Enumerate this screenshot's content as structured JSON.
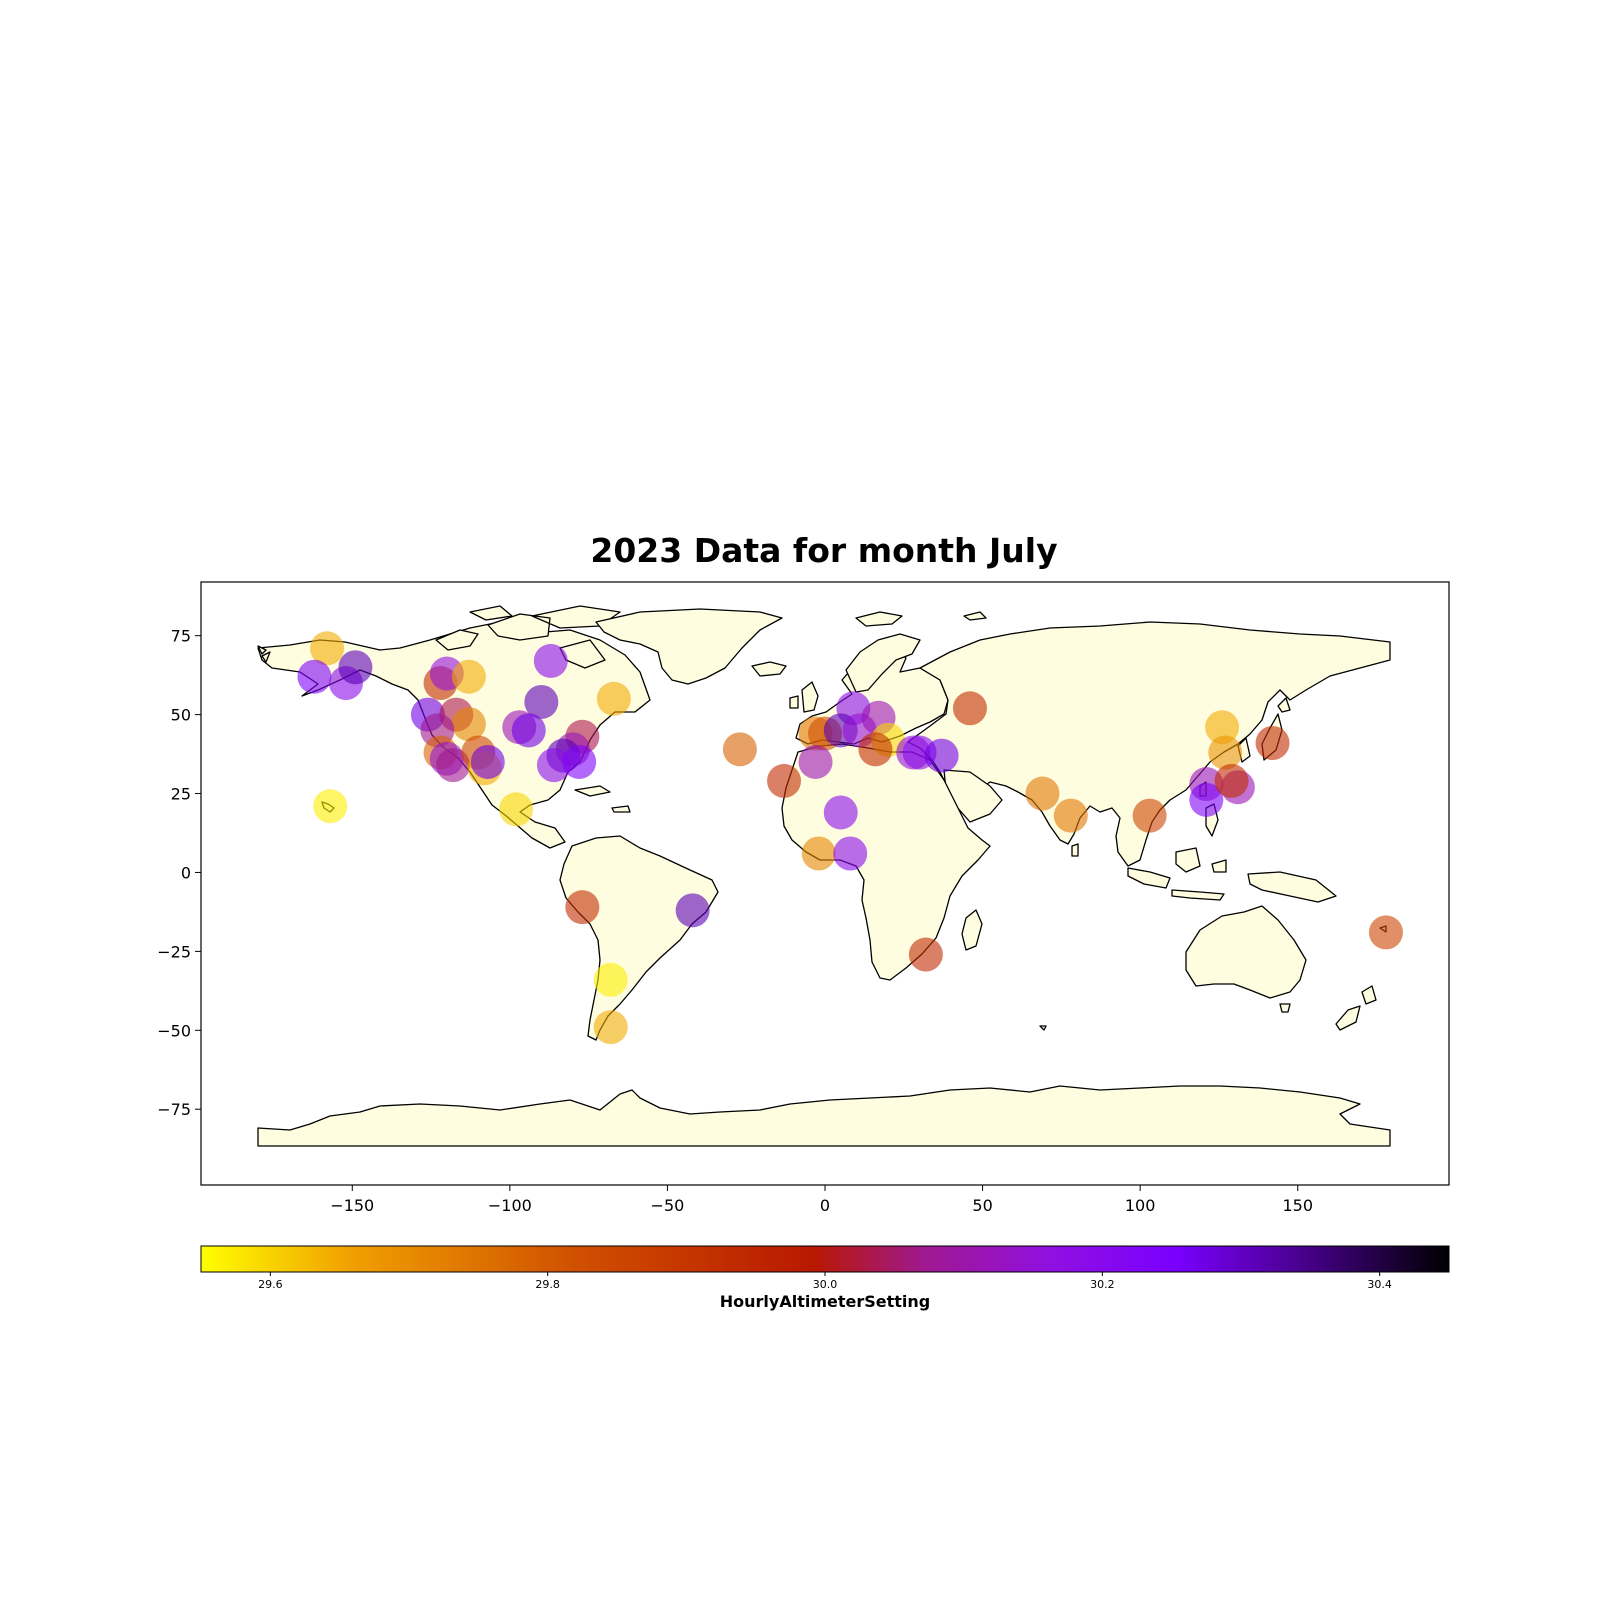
{
  "title": "2023 Data for month July",
  "colorbar": {
    "label": "HourlyAltimeterSetting",
    "min": 29.55,
    "max": 30.45,
    "ticks": [
      "29.6",
      "29.8",
      "30.0",
      "30.2",
      "30.4"
    ],
    "colormap": "gnuplot-like",
    "stops": [
      "#ffff00",
      "#f0a000",
      "#d05000",
      "#b81800",
      "#a01890",
      "#9010e0",
      "#7a00ff",
      "#4a0090",
      "#000000"
    ]
  },
  "chart_data": {
    "type": "scatter",
    "projection": "plate-carree",
    "xlim": [
      -198,
      198
    ],
    "ylim": [
      -99,
      92
    ],
    "xticks": [
      "−150",
      "−100",
      "−50",
      "0",
      "50",
      "100",
      "150"
    ],
    "yticks": [
      "75",
      "50",
      "25",
      "0",
      "−25",
      "−50",
      "−75"
    ],
    "grid": false,
    "land_color": "#fffde0",
    "points": [
      {
        "lon": -158,
        "lat": 71,
        "v": 29.65
      },
      {
        "lon": -162,
        "lat": 62,
        "v": 30.2
      },
      {
        "lon": -152,
        "lat": 60,
        "v": 30.15
      },
      {
        "lon": -149,
        "lat": 65,
        "v": 30.3
      },
      {
        "lon": -157,
        "lat": 21,
        "v": 29.57
      },
      {
        "lon": -122,
        "lat": 60,
        "v": 29.85
      },
      {
        "lon": -120,
        "lat": 63,
        "v": 30.1
      },
      {
        "lon": -113,
        "lat": 62,
        "v": 29.65
      },
      {
        "lon": -126,
        "lat": 50,
        "v": 30.25
      },
      {
        "lon": -117,
        "lat": 50,
        "v": 29.95
      },
      {
        "lon": -113,
        "lat": 47,
        "v": 29.7
      },
      {
        "lon": -123,
        "lat": 45,
        "v": 30.0
      },
      {
        "lon": -122,
        "lat": 38,
        "v": 29.75
      },
      {
        "lon": -120,
        "lat": 36,
        "v": 30.1
      },
      {
        "lon": -118,
        "lat": 34,
        "v": 30.0
      },
      {
        "lon": -110,
        "lat": 38,
        "v": 29.8
      },
      {
        "lon": -108,
        "lat": 33,
        "v": 29.65
      },
      {
        "lon": -107,
        "lat": 35,
        "v": 30.25
      },
      {
        "lon": -97,
        "lat": 46,
        "v": 30.05
      },
      {
        "lon": -90,
        "lat": 54,
        "v": 30.3
      },
      {
        "lon": -94,
        "lat": 45,
        "v": 30.25
      },
      {
        "lon": -87,
        "lat": 67,
        "v": 30.15
      },
      {
        "lon": -77,
        "lat": 43,
        "v": 29.95
      },
      {
        "lon": -80,
        "lat": 39,
        "v": 30.05
      },
      {
        "lon": -83,
        "lat": 37,
        "v": 30.3
      },
      {
        "lon": -86,
        "lat": 34,
        "v": 30.15
      },
      {
        "lon": -78,
        "lat": 35,
        "v": 30.2
      },
      {
        "lon": -98,
        "lat": 20,
        "v": 29.6
      },
      {
        "lon": -67,
        "lat": 55,
        "v": 29.65
      },
      {
        "lon": -77,
        "lat": -11,
        "v": 29.85
      },
      {
        "lon": -42,
        "lat": -12,
        "v": 30.3
      },
      {
        "lon": -68,
        "lat": -34,
        "v": 29.57
      },
      {
        "lon": -68,
        "lat": -49,
        "v": 29.65
      },
      {
        "lon": -27,
        "lat": 39,
        "v": 29.75
      },
      {
        "lon": -13,
        "lat": 29,
        "v": 29.85
      },
      {
        "lon": -3,
        "lat": 44,
        "v": 29.72
      },
      {
        "lon": 0,
        "lat": 44,
        "v": 29.78
      },
      {
        "lon": 9,
        "lat": 52,
        "v": 30.15
      },
      {
        "lon": 5,
        "lat": 45,
        "v": 30.3
      },
      {
        "lon": 11,
        "lat": 45,
        "v": 30.1
      },
      {
        "lon": 17,
        "lat": 49,
        "v": 30.05
      },
      {
        "lon": 20,
        "lat": 42,
        "v": 29.6
      },
      {
        "lon": 16,
        "lat": 39,
        "v": 29.85
      },
      {
        "lon": -3,
        "lat": 35,
        "v": 30.05
      },
      {
        "lon": 28,
        "lat": 38,
        "v": 30.1
      },
      {
        "lon": 30,
        "lat": 38,
        "v": 30.15
      },
      {
        "lon": 37,
        "lat": 37,
        "v": 30.25
      },
      {
        "lon": 46,
        "lat": 52,
        "v": 29.85
      },
      {
        "lon": 5,
        "lat": 19,
        "v": 30.15
      },
      {
        "lon": -2,
        "lat": 6,
        "v": 29.7
      },
      {
        "lon": 8,
        "lat": 6,
        "v": 30.15
      },
      {
        "lon": 32,
        "lat": -26,
        "v": 29.85
      },
      {
        "lon": 69,
        "lat": 25,
        "v": 29.72
      },
      {
        "lon": 78,
        "lat": 18,
        "v": 29.72
      },
      {
        "lon": 103,
        "lat": 18,
        "v": 29.8
      },
      {
        "lon": 126,
        "lat": 46,
        "v": 29.65
      },
      {
        "lon": 127,
        "lat": 38,
        "v": 29.68
      },
      {
        "lon": 142,
        "lat": 41,
        "v": 29.85
      },
      {
        "lon": 121,
        "lat": 28,
        "v": 30.05
      },
      {
        "lon": 121,
        "lat": 23,
        "v": 30.2
      },
      {
        "lon": 131,
        "lat": 27,
        "v": 30.05
      },
      {
        "lon": 129,
        "lat": 29,
        "v": 29.85
      },
      {
        "lon": 178,
        "lat": -19,
        "v": 29.8
      }
    ]
  }
}
